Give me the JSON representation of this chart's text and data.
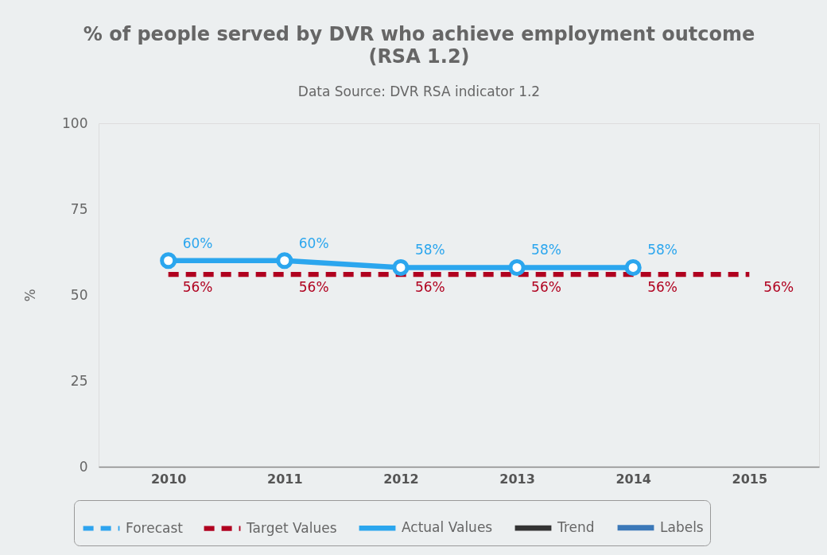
{
  "chart_data": {
    "type": "line",
    "title": "% of people served by DVR who achieve employment outcome (RSA 1.2)",
    "subtitle": "Data Source: DVR RSA indicator 1.2",
    "ylabel": "%",
    "categories": [
      "2010",
      "2011",
      "2012",
      "2013",
      "2014",
      "2015"
    ],
    "series": [
      {
        "name": "Forecast",
        "color": "#2ea4ef",
        "line_style": "dashed",
        "values": [
          null,
          null,
          null,
          null,
          null,
          null
        ]
      },
      {
        "name": "Target Values",
        "color": "#b0011f",
        "line_style": "dashed",
        "values": [
          56,
          56,
          56,
          56,
          56,
          56
        ],
        "value_labels": [
          "56%",
          "56%",
          "56%",
          "56%",
          "56%",
          "56%"
        ]
      },
      {
        "name": "Actual Values",
        "color": "#2ba6ee",
        "line_style": "solid",
        "marker": "circle",
        "values": [
          60,
          60,
          58,
          58,
          58,
          null
        ],
        "value_labels": [
          "60%",
          "60%",
          "58%",
          "58%",
          "58%",
          null
        ]
      },
      {
        "name": "Trend",
        "color": "#333333",
        "line_style": "solid",
        "values": [
          null,
          null,
          null,
          null,
          null,
          null
        ]
      },
      {
        "name": "Labels",
        "color": "#3b78b8",
        "line_style": "solid",
        "marker": "circle",
        "values": [
          null,
          null,
          null,
          null,
          null,
          null
        ]
      }
    ],
    "ylim": [
      0,
      100
    ],
    "yticks": [
      0,
      25,
      50,
      75,
      100
    ],
    "grid": false,
    "legend": "bottom"
  }
}
